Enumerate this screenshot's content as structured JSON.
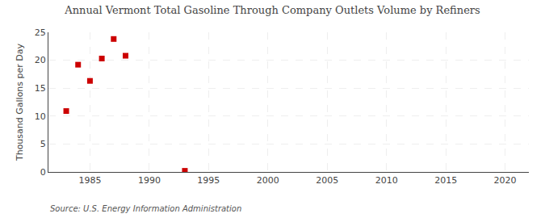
{
  "chart_data": {
    "type": "scatter",
    "title": "Annual Vermont Total Gasoline Through Company Outlets Volume by Refiners",
    "ylabel": "Thousand Gallons per Day",
    "annotations": [
      "Source: U.S. Energy Information Administration"
    ],
    "x": [
      1983,
      1984,
      1985,
      1986,
      1987,
      1988,
      1993
    ],
    "values": [
      10.9,
      19.2,
      16.3,
      20.3,
      23.8,
      20.8,
      0.2
    ],
    "color": "#cc0000",
    "marker": "square",
    "xlim": [
      1981.5,
      2022
    ],
    "ylim": [
      0,
      25
    ],
    "xticks": [
      1985,
      1990,
      1995,
      2000,
      2005,
      2010,
      2015,
      2020
    ],
    "yticks": [
      0,
      5,
      10,
      15,
      20,
      25
    ],
    "grid": true
  }
}
